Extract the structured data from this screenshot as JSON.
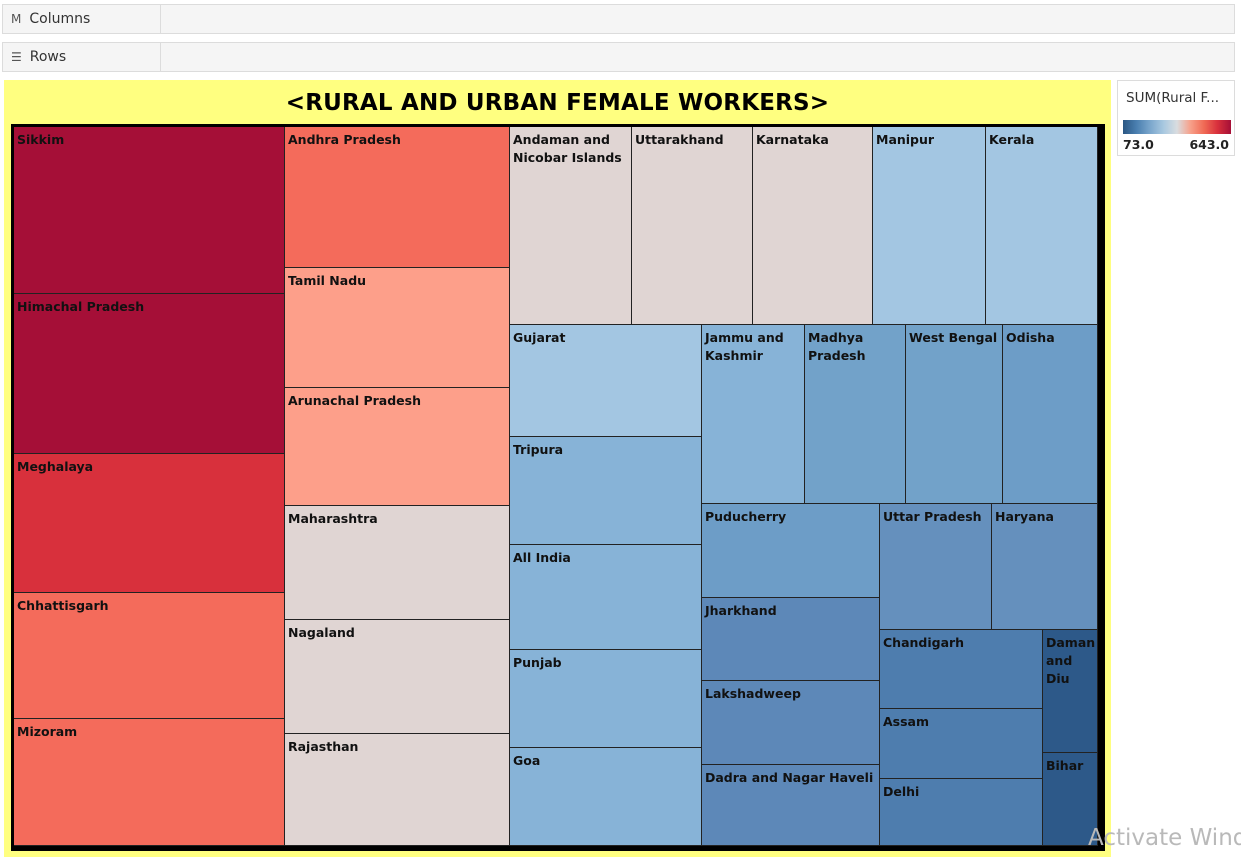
{
  "shelves": {
    "columns": {
      "icon": "columns-icon",
      "label": "Columns"
    },
    "rows": {
      "icon": "rows-icon",
      "label": "Rows"
    }
  },
  "watermark": "Activate Wind",
  "chart_data": {
    "type": "treemap",
    "title": "<RURAL AND URBAN FEMALE WORKERS>",
    "color_measure": "SUM(Rural F...",
    "color_range": [
      73.0,
      643.0
    ],
    "color_range_labels": [
      "73.0",
      "643.0"
    ],
    "palette": [
      "#2a5783",
      "#f5f5f5",
      "#a50f37"
    ],
    "tiles": [
      {
        "name": "Sikkim",
        "color": "#a50f37"
      },
      {
        "name": "Himachal Pradesh",
        "color": "#a50f37"
      },
      {
        "name": "Meghalaya",
        "color": "#d8303c"
      },
      {
        "name": "Chhattisgarh",
        "color": "#f46b5b"
      },
      {
        "name": "Mizoram",
        "color": "#f46b5b"
      },
      {
        "name": "Andhra Pradesh",
        "color": "#f46b5b"
      },
      {
        "name": "Tamil Nadu",
        "color": "#fd9f8a"
      },
      {
        "name": "Arunachal Pradesh",
        "color": "#fd9f8a"
      },
      {
        "name": "Maharashtra",
        "color": "#e0d5d3"
      },
      {
        "name": "Nagaland",
        "color": "#e0d5d3"
      },
      {
        "name": "Rajasthan",
        "color": "#e0d5d3"
      },
      {
        "name": "Andaman and Nicobar Islands",
        "color": "#e0d5d3"
      },
      {
        "name": "Uttarakhand",
        "color": "#e0d5d3"
      },
      {
        "name": "Karnataka",
        "color": "#e0d5d3"
      },
      {
        "name": "Manipur",
        "color": "#a3c6e2"
      },
      {
        "name": "Kerala",
        "color": "#a3c6e2"
      },
      {
        "name": "Gujarat",
        "color": "#a3c6e2"
      },
      {
        "name": "Tripura",
        "color": "#87b3d7"
      },
      {
        "name": "All India",
        "color": "#87b3d7"
      },
      {
        "name": "Punjab",
        "color": "#87b3d7"
      },
      {
        "name": "Goa",
        "color": "#87b3d7"
      },
      {
        "name": "Jammu and Kashmir",
        "color": "#87b3d7"
      },
      {
        "name": "Madhya Pradesh",
        "color": "#72a2c9"
      },
      {
        "name": "West Bengal",
        "color": "#72a2c9"
      },
      {
        "name": "Odisha",
        "color": "#6d9dc7"
      },
      {
        "name": "Puducherry",
        "color": "#6d9dc7"
      },
      {
        "name": "Uttar Pradesh",
        "color": "#6590bd"
      },
      {
        "name": "Haryana",
        "color": "#6590bd"
      },
      {
        "name": "Jharkhand",
        "color": "#5d88b8"
      },
      {
        "name": "Lakshadweep",
        "color": "#5d88b8"
      },
      {
        "name": "Dadra and Nagar Haveli",
        "color": "#5d88b8"
      },
      {
        "name": "Chandigarh",
        "color": "#4e7dae"
      },
      {
        "name": "Assam",
        "color": "#4e7dae"
      },
      {
        "name": "Delhi",
        "color": "#4e7dae"
      },
      {
        "name": "Daman and Diu",
        "color": "#2d5989"
      },
      {
        "name": "Bihar",
        "color": "#2d5989"
      }
    ]
  }
}
